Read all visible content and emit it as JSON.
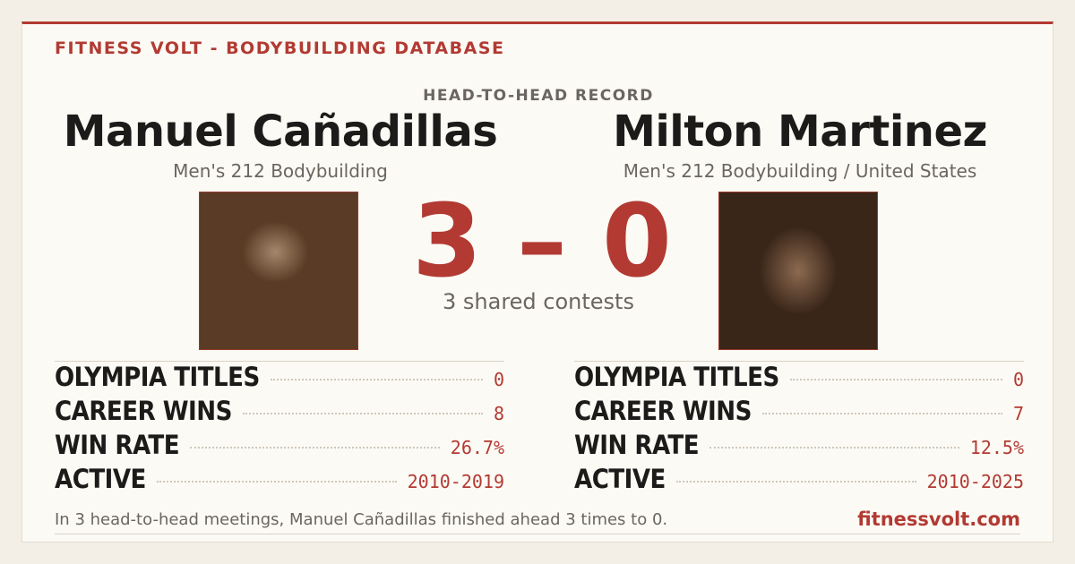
{
  "header": {
    "brand": "FITNESS VOLT - BODYBUILDING DATABASE",
    "title": "HEAD-TO-HEAD RECORD"
  },
  "athletes": [
    {
      "name": "Manuel Cañadillas",
      "division": "Men's 212 Bodybuilding",
      "stats": [
        {
          "label": "OLYMPIA TITLES",
          "value": "0"
        },
        {
          "label": "CAREER WINS",
          "value": "8"
        },
        {
          "label": "WIN RATE",
          "value": "26.7%"
        },
        {
          "label": "ACTIVE",
          "value": "2010-2019"
        }
      ]
    },
    {
      "name": "Milton Martinez",
      "division": "Men's 212 Bodybuilding / United States",
      "stats": [
        {
          "label": "OLYMPIA TITLES",
          "value": "0"
        },
        {
          "label": "CAREER WINS",
          "value": "7"
        },
        {
          "label": "WIN RATE",
          "value": "12.5%"
        },
        {
          "label": "ACTIVE",
          "value": "2010-2025"
        }
      ]
    }
  ],
  "score": {
    "text": "3 – 0",
    "caption": "3 shared contests"
  },
  "footer": {
    "summary": "In 3 head-to-head meetings, Manuel Cañadillas finished ahead 3 times to 0.",
    "site": "fitnessvolt.com"
  }
}
